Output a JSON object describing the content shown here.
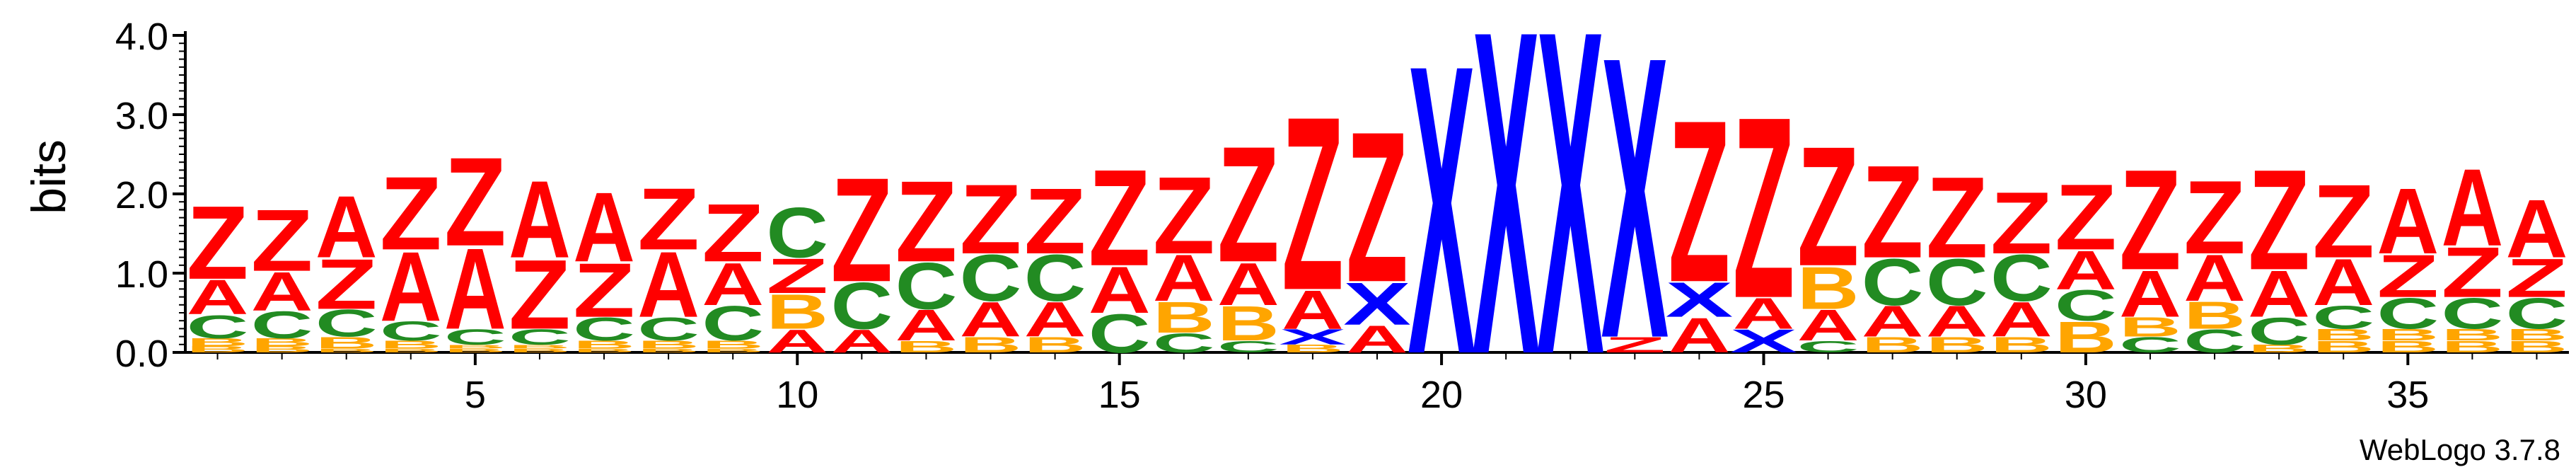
{
  "chart_data": {
    "type": "sequence-logo",
    "title": "",
    "ylabel": "bits",
    "xlabel": "",
    "ylim": [
      0,
      4.0
    ],
    "y_ticks": [
      "0.0",
      "1.0",
      "2.0",
      "3.0",
      "4.0"
    ],
    "x_ticks": [
      "5",
      "10",
      "15",
      "20",
      "25",
      "30",
      "35"
    ],
    "x_tick_values": [
      5,
      10,
      15,
      20,
      25,
      30,
      35
    ],
    "x_range": [
      1,
      37
    ],
    "credit": "WebLogo 3.7.8",
    "colors": {
      "Z": "#ff0000",
      "A": "#ff0000",
      "X": "#0000ff",
      "C": "#228b22",
      "B": "#ffa500"
    },
    "positions": [
      {
        "pos": 1,
        "stack": [
          [
            "B",
            0.08
          ],
          [
            "B",
            0.1
          ],
          [
            "C",
            0.3
          ],
          [
            "A",
            0.45
          ],
          [
            "Z",
            0.95
          ]
        ]
      },
      {
        "pos": 2,
        "stack": [
          [
            "B",
            0.08
          ],
          [
            "B",
            0.1
          ],
          [
            "C",
            0.35
          ],
          [
            "A",
            0.5
          ],
          [
            "Z",
            0.8
          ]
        ]
      },
      {
        "pos": 3,
        "stack": [
          [
            "B",
            0.05
          ],
          [
            "B",
            0.15
          ],
          [
            "C",
            0.35
          ],
          [
            "Z",
            0.65
          ],
          [
            "A",
            0.8
          ]
        ]
      },
      {
        "pos": 4,
        "stack": [
          [
            "B",
            0.05
          ],
          [
            "B",
            0.1
          ],
          [
            "C",
            0.25
          ],
          [
            "A",
            0.9
          ],
          [
            "Z",
            0.95
          ]
        ]
      },
      {
        "pos": 5,
        "stack": [
          [
            "B",
            0.05
          ],
          [
            "B",
            0.05
          ],
          [
            "C",
            0.2
          ],
          [
            "A",
            1.05
          ],
          [
            "Z",
            1.15
          ]
        ]
      },
      {
        "pos": 6,
        "stack": [
          [
            "B",
            0.05
          ],
          [
            "B",
            0.05
          ],
          [
            "C",
            0.2
          ],
          [
            "Z",
            0.9
          ],
          [
            "A",
            1.0
          ]
        ]
      },
      {
        "pos": 7,
        "stack": [
          [
            "B",
            0.05
          ],
          [
            "B",
            0.1
          ],
          [
            "C",
            0.3
          ],
          [
            "Z",
            0.7
          ],
          [
            "A",
            0.9
          ]
        ]
      },
      {
        "pos": 8,
        "stack": [
          [
            "B",
            0.05
          ],
          [
            "B",
            0.1
          ],
          [
            "C",
            0.3
          ],
          [
            "A",
            0.85
          ],
          [
            "Z",
            0.8
          ]
        ]
      },
      {
        "pos": 9,
        "stack": [
          [
            "B",
            0.05
          ],
          [
            "B",
            0.1
          ],
          [
            "C",
            0.45
          ],
          [
            "A",
            0.55
          ],
          [
            "Z",
            0.75
          ]
        ]
      },
      {
        "pos": 10,
        "stack": [
          [
            "A",
            0.3
          ],
          [
            "B",
            0.45
          ],
          [
            "Z",
            0.45
          ],
          [
            "C",
            0.65
          ]
        ]
      },
      {
        "pos": 11,
        "stack": [
          [
            "A",
            0.3
          ],
          [
            "C",
            0.6
          ],
          [
            "Z",
            1.35
          ]
        ]
      },
      {
        "pos": 12,
        "stack": [
          [
            "B",
            0.15
          ],
          [
            "A",
            0.4
          ],
          [
            "C",
            0.6
          ],
          [
            "Z",
            1.05
          ]
        ]
      },
      {
        "pos": 13,
        "stack": [
          [
            "B",
            0.2
          ],
          [
            "A",
            0.45
          ],
          [
            "C",
            0.6
          ],
          [
            "Z",
            0.9
          ]
        ]
      },
      {
        "pos": 14,
        "stack": [
          [
            "B",
            0.2
          ],
          [
            "A",
            0.45
          ],
          [
            "C",
            0.6
          ],
          [
            "Z",
            0.85
          ]
        ]
      },
      {
        "pos": 15,
        "stack": [
          [
            "C",
            0.5
          ],
          [
            "A",
            0.6
          ],
          [
            "Z",
            1.25
          ]
        ]
      },
      {
        "pos": 16,
        "stack": [
          [
            "C",
            0.25
          ],
          [
            "B",
            0.4
          ],
          [
            "A",
            0.6
          ],
          [
            "Z",
            1.0
          ]
        ]
      },
      {
        "pos": 17,
        "stack": [
          [
            "C",
            0.15
          ],
          [
            "B",
            0.45
          ],
          [
            "A",
            0.55
          ],
          [
            "Z",
            1.5
          ]
        ]
      },
      {
        "pos": 18,
        "stack": [
          [
            "B",
            0.1
          ],
          [
            "X",
            0.2
          ],
          [
            "A",
            0.5
          ],
          [
            "Z",
            2.25
          ]
        ]
      },
      {
        "pos": 19,
        "stack": [
          [
            "A",
            0.35
          ],
          [
            "X",
            0.55
          ],
          [
            "Z",
            1.95
          ]
        ]
      },
      {
        "pos": 20,
        "stack": [
          [
            "X",
            3.75
          ]
        ]
      },
      {
        "pos": 21,
        "stack": [
          [
            "X",
            4.2
          ]
        ]
      },
      {
        "pos": 22,
        "stack": [
          [
            "X",
            4.2
          ]
        ]
      },
      {
        "pos": 23,
        "stack": [
          [
            "Z",
            0.2
          ],
          [
            "X",
            3.65
          ]
        ]
      },
      {
        "pos": 24,
        "stack": [
          [
            "A",
            0.45
          ],
          [
            "X",
            0.45
          ],
          [
            "Z",
            2.1
          ]
        ]
      },
      {
        "pos": 25,
        "stack": [
          [
            "X",
            0.3
          ],
          [
            "A",
            0.4
          ],
          [
            "Z",
            2.35
          ]
        ]
      },
      {
        "pos": 26,
        "stack": [
          [
            "C",
            0.15
          ],
          [
            "A",
            0.4
          ],
          [
            "B",
            0.55
          ],
          [
            "Z",
            1.55
          ]
        ]
      },
      {
        "pos": 27,
        "stack": [
          [
            "B",
            0.2
          ],
          [
            "A",
            0.4
          ],
          [
            "C",
            0.6
          ],
          [
            "Z",
            1.2
          ]
        ]
      },
      {
        "pos": 28,
        "stack": [
          [
            "B",
            0.2
          ],
          [
            "A",
            0.4
          ],
          [
            "C",
            0.6
          ],
          [
            "Z",
            1.05
          ]
        ]
      },
      {
        "pos": 29,
        "stack": [
          [
            "B",
            0.2
          ],
          [
            "A",
            0.45
          ],
          [
            "C",
            0.6
          ],
          [
            "Z",
            0.8
          ]
        ]
      },
      {
        "pos": 30,
        "stack": [
          [
            "B",
            0.4
          ],
          [
            "C",
            0.4
          ],
          [
            "A",
            0.5
          ],
          [
            "Z",
            0.85
          ]
        ]
      },
      {
        "pos": 31,
        "stack": [
          [
            "C",
            0.2
          ],
          [
            "B",
            0.25
          ],
          [
            "A",
            0.6
          ],
          [
            "Z",
            1.3
          ]
        ]
      },
      {
        "pos": 32,
        "stack": [
          [
            "C",
            0.3
          ],
          [
            "B",
            0.35
          ],
          [
            "A",
            0.6
          ],
          [
            "Z",
            0.95
          ]
        ]
      },
      {
        "pos": 33,
        "stack": [
          [
            "B",
            0.1
          ],
          [
            "C",
            0.35
          ],
          [
            "A",
            0.6
          ],
          [
            "Z",
            1.3
          ]
        ]
      },
      {
        "pos": 34,
        "stack": [
          [
            "B",
            0.15
          ],
          [
            "B",
            0.15
          ],
          [
            "C",
            0.3
          ],
          [
            "A",
            0.6
          ],
          [
            "Z",
            0.95
          ]
        ]
      },
      {
        "pos": 35,
        "stack": [
          [
            "B",
            0.15
          ],
          [
            "B",
            0.15
          ],
          [
            "C",
            0.4
          ],
          [
            "Z",
            0.55
          ],
          [
            "A",
            0.85
          ]
        ]
      },
      {
        "pos": 36,
        "stack": [
          [
            "B",
            0.15
          ],
          [
            "B",
            0.15
          ],
          [
            "C",
            0.4
          ],
          [
            "Z",
            0.65
          ],
          [
            "A",
            1.0
          ]
        ]
      },
      {
        "pos": 37,
        "stack": [
          [
            "B",
            0.15
          ],
          [
            "B",
            0.15
          ],
          [
            "C",
            0.4
          ],
          [
            "Z",
            0.5
          ],
          [
            "A",
            0.75
          ]
        ]
      }
    ]
  }
}
